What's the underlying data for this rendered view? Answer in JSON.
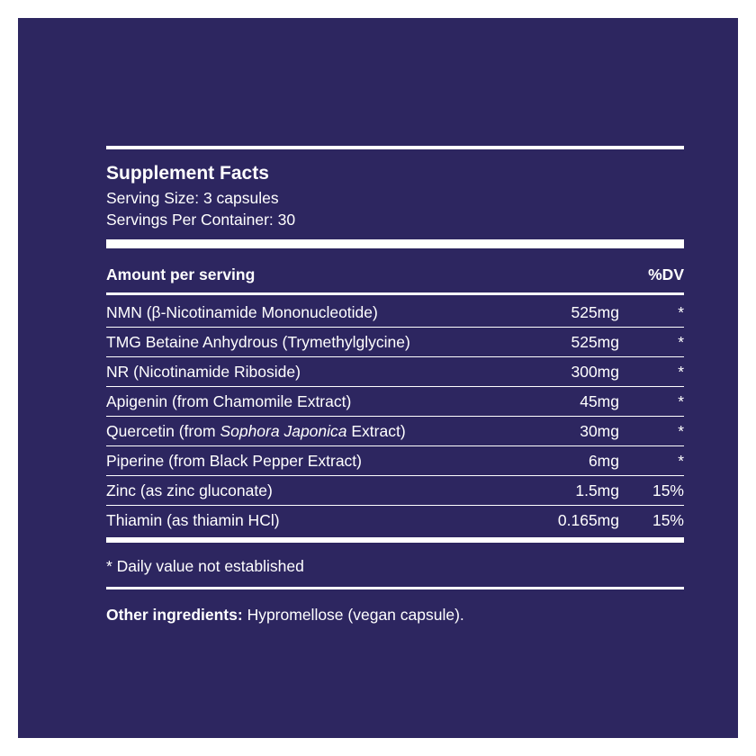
{
  "title": "Supplement Facts",
  "serving_size": "Serving Size: 3 capsules",
  "servings_per_container": "Servings Per Container: 30",
  "header": {
    "amount": "Amount per serving",
    "dv": "%DV"
  },
  "rows": [
    {
      "name": "NMN (β-Nicotinamide Mononucleotide)",
      "amount": "525mg",
      "dv": "*"
    },
    {
      "name": "TMG Betaine Anhydrous (Trymethylglycine)",
      "amount": "525mg",
      "dv": "*"
    },
    {
      "name": "NR (Nicotinamide Riboside)",
      "amount": "300mg",
      "dv": "*"
    },
    {
      "name": "Apigenin (from Chamomile Extract)",
      "amount": "45mg",
      "dv": "*"
    },
    {
      "name_parts": [
        "Quercetin (from ",
        "Sophora Japonica",
        " Extract)"
      ],
      "amount": "30mg",
      "dv": "*"
    },
    {
      "name": "Piperine (from Black Pepper Extract)",
      "amount": "6mg",
      "dv": "*"
    },
    {
      "name": "Zinc (as zinc gluconate)",
      "amount": "1.5mg",
      "dv": "15%"
    },
    {
      "name": "Thiamin (as thiamin HCl)",
      "amount": "0.165mg",
      "dv": "15%"
    }
  ],
  "footnote": "* Daily value not established",
  "other_ingredients": {
    "label": "Other ingredients:",
    "text": "Hypromellose (vegan capsule)."
  }
}
